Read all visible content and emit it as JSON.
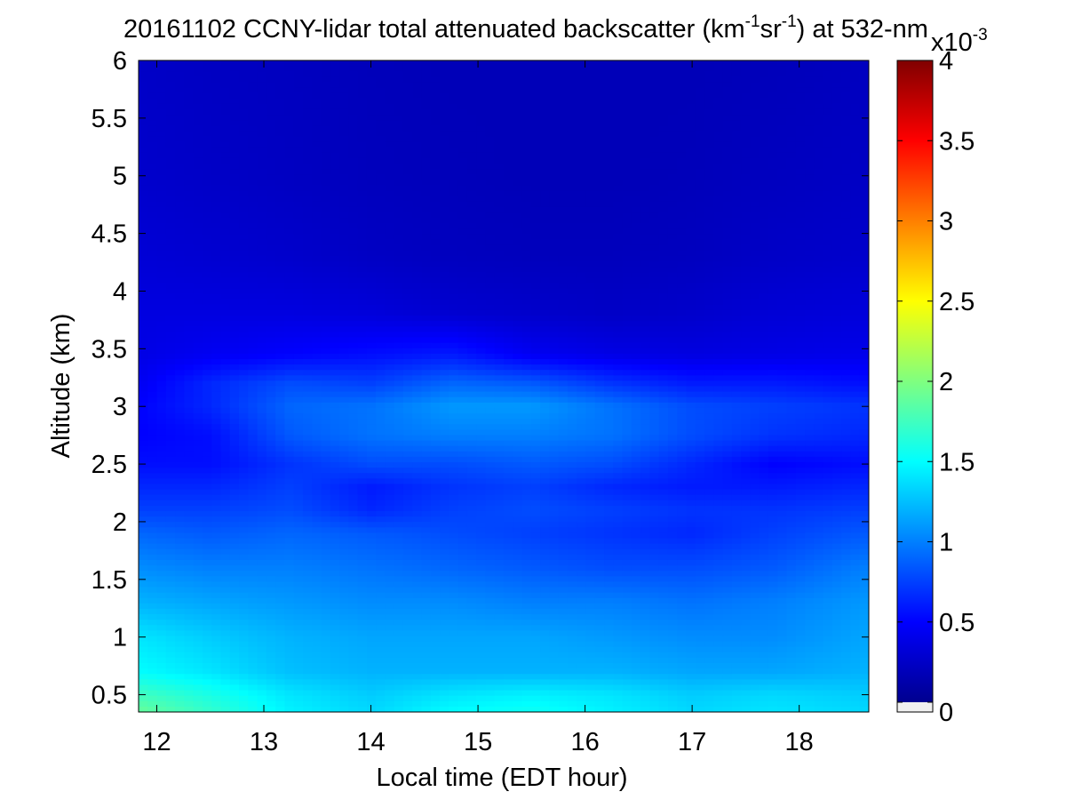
{
  "chart_data": {
    "type": "heatmap",
    "title": {
      "prefix": "20161102 CCNY-lidar total attenuated backscatter (km",
      "sup1": "-1",
      "mid": "sr",
      "sup2": "-1",
      "suffix": ") at 532-nm"
    },
    "xlabel": "Local time (EDT hour)",
    "ylabel": "Altitude (km)",
    "xlim": [
      11.83,
      18.65
    ],
    "ylim": [
      0.35,
      6
    ],
    "x_ticks": [
      12,
      13,
      14,
      15,
      16,
      17,
      18
    ],
    "x_tick_labels": [
      "12",
      "13",
      "14",
      "15",
      "16",
      "17",
      "18"
    ],
    "y_ticks": [
      0.5,
      1,
      1.5,
      2,
      2.5,
      3,
      3.5,
      4,
      4.5,
      5,
      5.5,
      6
    ],
    "y_tick_labels": [
      "0.5",
      "1",
      "1.5",
      "2",
      "2.5",
      "3",
      "3.5",
      "4",
      "4.5",
      "5",
      "5.5",
      "6"
    ],
    "colorbar": {
      "range": [
        0,
        4
      ],
      "ticks": [
        0,
        0.5,
        1,
        1.5,
        2,
        2.5,
        3,
        3.5,
        4
      ],
      "tick_labels": [
        "0",
        "0.5",
        "1",
        "1.5",
        "2",
        "2.5",
        "3",
        "3.5",
        "4"
      ],
      "multiplier_base": "x10",
      "multiplier_exp": "-3",
      "colormap": "jet",
      "bad_value_color": "#f0f0f0"
    },
    "altitudes_km": [
      0.35,
      0.5,
      0.7,
      1.0,
      1.3,
      1.6,
      1.9,
      2.1,
      2.3,
      2.5,
      2.75,
      3.0,
      3.2,
      3.45,
      3.8,
      4.3,
      5.0,
      6.0
    ],
    "times_hr": [
      11.83,
      12.5,
      13.25,
      14.0,
      14.75,
      15.5,
      16.25,
      17.0,
      17.75,
      18.65
    ],
    "values_1e-3": [
      [
        1.9,
        1.7,
        1.45,
        1.35,
        1.5,
        1.55,
        1.45,
        1.35,
        1.4,
        1.35
      ],
      [
        1.75,
        1.6,
        1.4,
        1.3,
        1.4,
        1.45,
        1.4,
        1.3,
        1.35,
        1.3
      ],
      [
        1.5,
        1.4,
        1.25,
        1.2,
        1.2,
        1.2,
        1.2,
        1.15,
        1.15,
        1.2
      ],
      [
        1.4,
        1.3,
        1.2,
        1.15,
        1.15,
        1.15,
        1.1,
        1.05,
        1.05,
        1.15
      ],
      [
        1.2,
        1.15,
        1.1,
        1.05,
        1.05,
        1.0,
        1.0,
        0.95,
        1.0,
        1.1
      ],
      [
        1.05,
        1.0,
        1.0,
        0.95,
        0.9,
        0.85,
        0.8,
        0.8,
        0.85,
        1.0
      ],
      [
        0.9,
        0.85,
        0.9,
        0.85,
        0.8,
        0.75,
        0.7,
        0.65,
        0.75,
        0.85
      ],
      [
        0.75,
        0.75,
        0.8,
        0.65,
        0.75,
        0.8,
        0.75,
        0.7,
        0.7,
        0.75
      ],
      [
        0.65,
        0.65,
        0.75,
        0.6,
        0.7,
        0.75,
        0.65,
        0.6,
        0.6,
        0.65
      ],
      [
        0.55,
        0.55,
        0.7,
        0.8,
        0.8,
        0.85,
        0.8,
        0.65,
        0.5,
        0.55
      ],
      [
        0.5,
        0.55,
        0.85,
        0.95,
        1.0,
        1.0,
        0.95,
        0.8,
        0.7,
        0.65
      ],
      [
        0.5,
        0.65,
        0.9,
        0.95,
        1.1,
        1.1,
        0.95,
        0.8,
        0.75,
        0.7
      ],
      [
        0.45,
        0.65,
        0.8,
        0.75,
        0.9,
        0.85,
        0.7,
        0.6,
        0.6,
        0.55
      ],
      [
        0.4,
        0.45,
        0.5,
        0.55,
        0.6,
        0.45,
        0.4,
        0.38,
        0.4,
        0.42
      ],
      [
        0.38,
        0.38,
        0.38,
        0.36,
        0.32,
        0.3,
        0.28,
        0.3,
        0.34,
        0.36
      ],
      [
        0.34,
        0.32,
        0.3,
        0.27,
        0.25,
        0.24,
        0.24,
        0.25,
        0.28,
        0.3
      ],
      [
        0.3,
        0.28,
        0.26,
        0.24,
        0.23,
        0.22,
        0.22,
        0.23,
        0.25,
        0.27
      ],
      [
        0.28,
        0.26,
        0.25,
        0.23,
        0.22,
        0.22,
        0.22,
        0.22,
        0.23,
        0.25
      ]
    ]
  }
}
